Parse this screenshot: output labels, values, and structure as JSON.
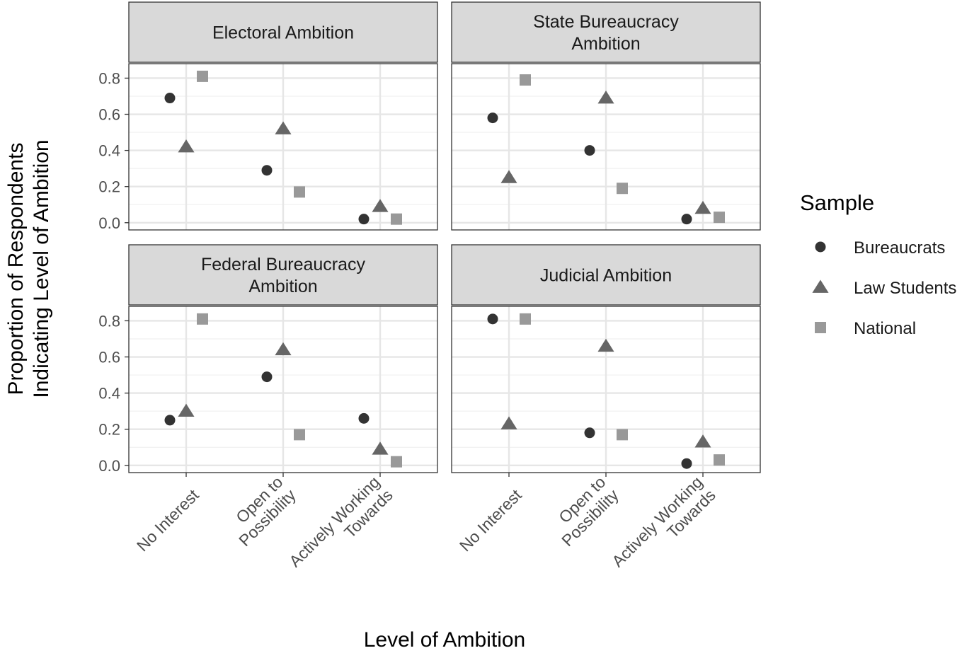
{
  "chart_data": {
    "type": "scatter",
    "facet_layout": "2x2",
    "xlabel": "Level of Ambition",
    "ylabel": [
      "Proportion of Respondents",
      "Indicating Level of Ambition"
    ],
    "categories": [
      "No Interest",
      "Open to Possibility",
      "Actively Working Towards"
    ],
    "category_label_lines": [
      [
        "No Interest"
      ],
      [
        "Open to",
        "Possibility"
      ],
      [
        "Actively Working",
        "Towards"
      ]
    ],
    "ylim": [
      -0.04,
      0.88
    ],
    "yticks": [
      0.0,
      0.2,
      0.4,
      0.6,
      0.8
    ],
    "ytick_labels": [
      "0.0",
      "0.2",
      "0.4",
      "0.6",
      "0.8"
    ],
    "grid": true,
    "legend": {
      "title": "Sample",
      "position": "right",
      "entries": [
        {
          "name": "Bureaucrats",
          "shape": "circle",
          "color": "#333333"
        },
        {
          "name": "Law Students",
          "shape": "triangle",
          "color": "#666666"
        },
        {
          "name": "National",
          "shape": "square",
          "color": "#999999"
        }
      ]
    },
    "panels": [
      {
        "title": [
          "Electoral Ambition"
        ],
        "series": [
          {
            "name": "Bureaucrats",
            "values": [
              0.69,
              0.29,
              0.02
            ]
          },
          {
            "name": "Law Students",
            "values": [
              0.42,
              0.52,
              0.09
            ]
          },
          {
            "name": "National",
            "values": [
              0.81,
              0.17,
              0.02
            ]
          }
        ]
      },
      {
        "title": [
          "State Bureaucracy",
          "Ambition"
        ],
        "series": [
          {
            "name": "Bureaucrats",
            "values": [
              0.58,
              0.4,
              0.02
            ]
          },
          {
            "name": "Law Students",
            "values": [
              0.25,
              0.69,
              0.08
            ]
          },
          {
            "name": "National",
            "values": [
              0.79,
              0.19,
              0.03
            ]
          }
        ]
      },
      {
        "title": [
          "Federal Bureaucracy",
          "Ambition"
        ],
        "series": [
          {
            "name": "Bureaucrats",
            "values": [
              0.25,
              0.49,
              0.26
            ]
          },
          {
            "name": "Law Students",
            "values": [
              0.3,
              0.64,
              0.09
            ]
          },
          {
            "name": "National",
            "values": [
              0.81,
              0.17,
              0.02
            ]
          }
        ]
      },
      {
        "title": [
          "Judicial Ambition"
        ],
        "series": [
          {
            "name": "Bureaucrats",
            "values": [
              0.81,
              0.18,
              0.01
            ]
          },
          {
            "name": "Law Students",
            "values": [
              0.23,
              0.66,
              0.13
            ]
          },
          {
            "name": "National",
            "values": [
              0.81,
              0.17,
              0.03
            ]
          }
        ]
      }
    ]
  }
}
